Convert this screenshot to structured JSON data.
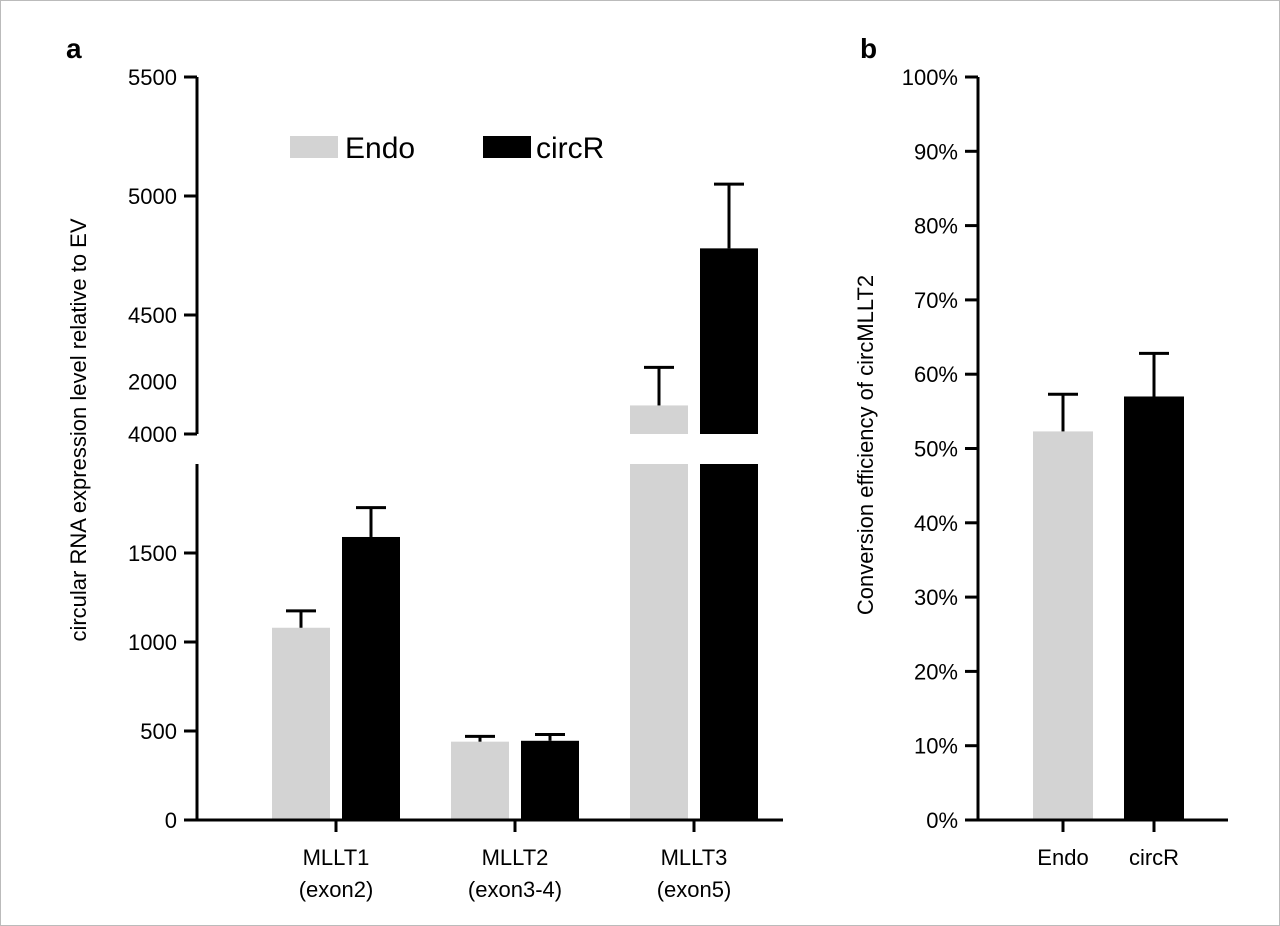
{
  "panels": {
    "a": {
      "label": "a"
    },
    "b": {
      "label": "b"
    }
  },
  "colors": {
    "Endo": "#d3d3d3",
    "circR": "#000000",
    "axis": "#000000",
    "border": "#bbbbbb"
  },
  "chart_data": [
    {
      "type": "bar",
      "panel": "a",
      "title": "",
      "ylabel": "circular RNA expression level relative to EV",
      "xlabel": "",
      "categories": [
        {
          "line1": "MLLT1",
          "line2": "(exon2)"
        },
        {
          "line1": "MLLT2",
          "line2": "(exon3-4)"
        },
        {
          "line1": "MLLT3",
          "line2": "(exon5)"
        }
      ],
      "series": [
        {
          "name": "Endo",
          "values": [
            1080,
            440,
            4120
          ],
          "errors": [
            95,
            30,
            160
          ]
        },
        {
          "name": "circR",
          "values": [
            1590,
            445,
            4780
          ],
          "errors": [
            165,
            35,
            270
          ]
        }
      ],
      "legend": {
        "position": "top",
        "entries": [
          "Endo",
          "circR"
        ]
      },
      "y_axis_broken": true,
      "lower_segment": {
        "ylim": [
          0,
          2000
        ],
        "ticks": [
          "0",
          "500",
          "1000",
          "1500"
        ]
      },
      "upper_segment": {
        "ylim": [
          4000,
          5500
        ],
        "ticks": [
          "4000",
          "4500",
          "5000",
          "5500"
        ]
      },
      "break_tick_label": "2000",
      "grid": false
    },
    {
      "type": "bar",
      "panel": "b",
      "title": "",
      "ylabel": "Conversion efficiency of circMLLT2",
      "xlabel": "",
      "categories": [
        "Endo",
        "circR"
      ],
      "values": [
        52.3,
        57.0
      ],
      "errors": [
        5.0,
        5.8
      ],
      "ylim": [
        0,
        100
      ],
      "ticks": [
        "0%",
        "10%",
        "20%",
        "30%",
        "40%",
        "50%",
        "60%",
        "70%",
        "80%",
        "90%",
        "100%"
      ],
      "grid": false
    }
  ]
}
